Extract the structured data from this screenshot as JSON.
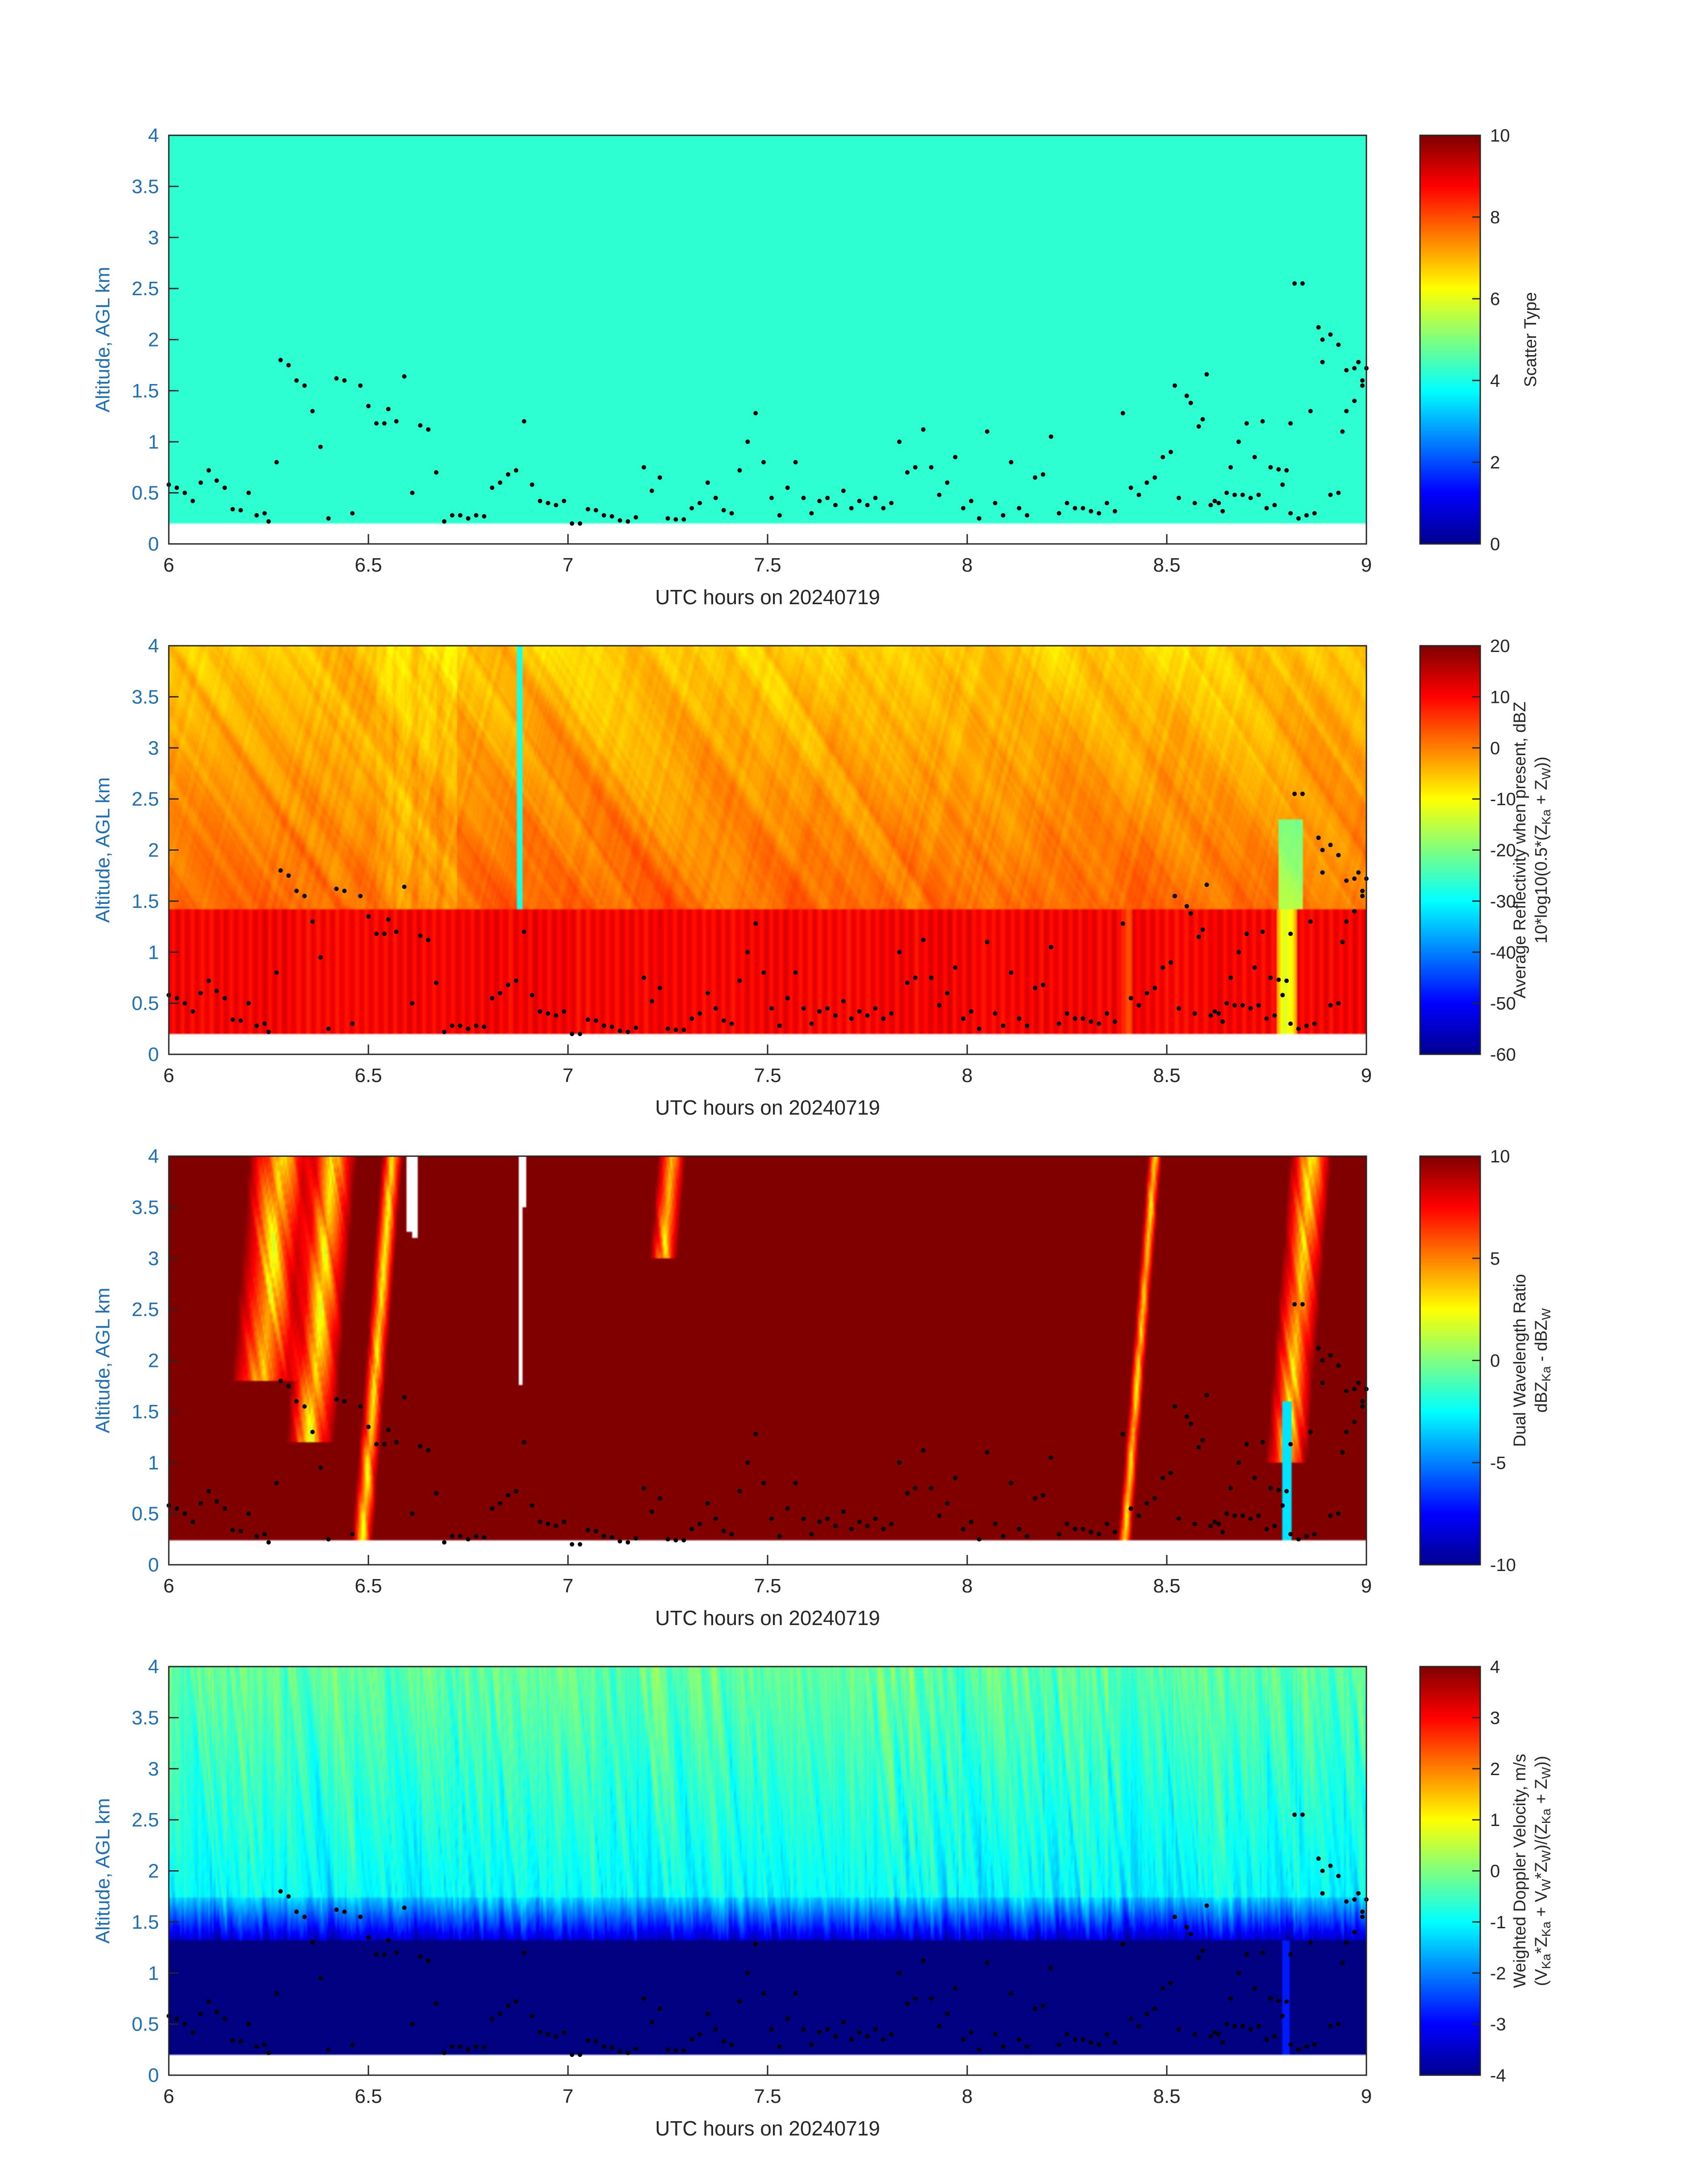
{
  "chart_data": [
    {
      "type": "heatmap",
      "panel": "scatter-type",
      "xlabel": "UTC hours on 20240719",
      "ylabel": "Altitude, AGL km",
      "xlim": [
        6,
        9
      ],
      "ylim": [
        0,
        4
      ],
      "xticks": [
        "6",
        "6.5",
        "7",
        "7.5",
        "8",
        "8.5",
        "9"
      ],
      "yticks": [
        "0",
        "0.5",
        "1",
        "1.5",
        "2",
        "2.5",
        "3",
        "3.5",
        "4"
      ],
      "colorbar": {
        "ticks": [
          "0",
          "2",
          "4",
          "6",
          "8",
          "10"
        ],
        "range": [
          0,
          10
        ],
        "label_lines": [
          "Scatter Type"
        ]
      },
      "field": "uniform",
      "field_value": 4.2,
      "data_bottom_km": 0.2,
      "overlay": "cloud-base-dots"
    },
    {
      "type": "heatmap",
      "panel": "reflectivity",
      "xlabel": "UTC hours on 20240719",
      "ylabel": "Altitude, AGL km",
      "xlim": [
        6,
        9
      ],
      "ylim": [
        0,
        4
      ],
      "xticks": [
        "6",
        "6.5",
        "7",
        "7.5",
        "8",
        "8.5",
        "9"
      ],
      "yticks": [
        "0",
        "0.5",
        "1",
        "1.5",
        "2",
        "2.5",
        "3",
        "3.5",
        "4"
      ],
      "colorbar": {
        "ticks": [
          "20",
          "10",
          "0",
          "-10",
          "-20",
          "-30",
          "-40",
          "-50",
          "-60"
        ],
        "range": [
          -60,
          20
        ],
        "label_lines": [
          "Average Reflectivity when present, dBZ",
          "10*log10(0.5*(Z",
          "Ka",
          " + Z",
          "W",
          "))"
        ]
      },
      "field": "reflectivity",
      "data_bottom_km": 0.2,
      "overlay": "cloud-base-dots"
    },
    {
      "type": "heatmap",
      "panel": "dual-wavelength-ratio",
      "xlabel": "UTC hours on 20240719",
      "ylabel": "Altitude, AGL km",
      "xlim": [
        6,
        9
      ],
      "ylim": [
        0,
        4
      ],
      "xticks": [
        "6",
        "6.5",
        "7",
        "7.5",
        "8",
        "8.5",
        "9"
      ],
      "yticks": [
        "0",
        "0.5",
        "1",
        "1.5",
        "2",
        "2.5",
        "3",
        "3.5",
        "4"
      ],
      "colorbar": {
        "ticks": [
          "10",
          "5",
          "0",
          "-5",
          "-10"
        ],
        "range": [
          -10,
          10
        ],
        "label_lines": [
          "Dual Wavelength Ratio",
          "dBZ",
          "Ka",
          " - dBZ",
          "W"
        ]
      },
      "field": "dwr",
      "data_bottom_km": 0.25,
      "overlay": "cloud-base-dots"
    },
    {
      "type": "heatmap",
      "panel": "doppler-velocity",
      "xlabel": "UTC hours on 20240719",
      "ylabel": "Altitude, AGL km",
      "xlim": [
        6,
        9
      ],
      "ylim": [
        0,
        4
      ],
      "xticks": [
        "6",
        "6.5",
        "7",
        "7.5",
        "8",
        "8.5",
        "9"
      ],
      "yticks": [
        "0",
        "0.5",
        "1",
        "1.5",
        "2",
        "2.5",
        "3",
        "3.5",
        "4"
      ],
      "colorbar": {
        "ticks": [
          "4",
          "3",
          "2",
          "1",
          "0",
          "-1",
          "-2",
          "-3",
          "-4"
        ],
        "range": [
          -4,
          4
        ],
        "label_lines": [
          "Weighted Doppler Velocity, m/s",
          "(V",
          "Ka",
          "*Z",
          "Ka",
          " + V",
          "W",
          "*Z",
          "W",
          ")/(Z",
          "Ka",
          " + Z",
          "W",
          "))"
        ]
      },
      "field": "velocity",
      "data_bottom_km": 0.2,
      "overlay": "cloud-base-dots"
    }
  ],
  "cloud_base_km": [
    [
      6.0,
      0.58
    ],
    [
      6.02,
      0.55
    ],
    [
      6.04,
      0.5
    ],
    [
      6.06,
      0.42
    ],
    [
      6.08,
      0.6
    ],
    [
      6.1,
      0.72
    ],
    [
      6.12,
      0.62
    ],
    [
      6.14,
      0.55
    ],
    [
      6.16,
      0.34
    ],
    [
      6.18,
      0.33
    ],
    [
      6.2,
      0.5
    ],
    [
      6.22,
      0.28
    ],
    [
      6.24,
      0.3
    ],
    [
      6.25,
      0.22
    ],
    [
      6.27,
      0.8
    ],
    [
      6.28,
      1.8
    ],
    [
      6.3,
      1.75
    ],
    [
      6.32,
      1.6
    ],
    [
      6.34,
      1.55
    ],
    [
      6.36,
      1.3
    ],
    [
      6.38,
      0.95
    ],
    [
      6.4,
      0.25
    ],
    [
      6.42,
      1.62
    ],
    [
      6.44,
      1.6
    ],
    [
      6.46,
      0.3
    ],
    [
      6.48,
      1.55
    ],
    [
      6.5,
      1.35
    ],
    [
      6.52,
      1.18
    ],
    [
      6.54,
      1.18
    ],
    [
      6.55,
      1.32
    ],
    [
      6.57,
      1.2
    ],
    [
      6.59,
      1.64
    ],
    [
      6.61,
      0.5
    ],
    [
      6.63,
      1.16
    ],
    [
      6.65,
      1.12
    ],
    [
      6.67,
      0.7
    ],
    [
      6.69,
      0.22
    ],
    [
      6.71,
      0.28
    ],
    [
      6.73,
      0.28
    ],
    [
      6.75,
      0.25
    ],
    [
      6.77,
      0.28
    ],
    [
      6.79,
      0.27
    ],
    [
      6.81,
      0.55
    ],
    [
      6.83,
      0.6
    ],
    [
      6.85,
      0.68
    ],
    [
      6.87,
      0.72
    ],
    [
      6.89,
      1.2
    ],
    [
      6.91,
      0.58
    ],
    [
      6.93,
      0.42
    ],
    [
      6.95,
      0.4
    ],
    [
      6.97,
      0.38
    ],
    [
      6.99,
      0.42
    ],
    [
      7.01,
      0.2
    ],
    [
      7.03,
      0.2
    ],
    [
      7.05,
      0.34
    ],
    [
      7.07,
      0.33
    ],
    [
      7.09,
      0.28
    ],
    [
      7.11,
      0.27
    ],
    [
      7.13,
      0.23
    ],
    [
      7.15,
      0.22
    ],
    [
      7.17,
      0.26
    ],
    [
      7.19,
      0.75
    ],
    [
      7.21,
      0.52
    ],
    [
      7.23,
      0.65
    ],
    [
      7.25,
      0.25
    ],
    [
      7.27,
      0.24
    ],
    [
      7.29,
      0.24
    ],
    [
      7.31,
      0.35
    ],
    [
      7.33,
      0.4
    ],
    [
      7.35,
      0.6
    ],
    [
      7.37,
      0.45
    ],
    [
      7.39,
      0.33
    ],
    [
      7.41,
      0.3
    ],
    [
      7.43,
      0.72
    ],
    [
      7.45,
      1.0
    ],
    [
      7.47,
      1.28
    ],
    [
      7.49,
      0.8
    ],
    [
      7.51,
      0.45
    ],
    [
      7.53,
      0.28
    ],
    [
      7.55,
      0.55
    ],
    [
      7.57,
      0.8
    ],
    [
      7.59,
      0.45
    ],
    [
      7.61,
      0.3
    ],
    [
      7.63,
      0.42
    ],
    [
      7.65,
      0.45
    ],
    [
      7.67,
      0.38
    ],
    [
      7.69,
      0.52
    ],
    [
      7.71,
      0.35
    ],
    [
      7.73,
      0.42
    ],
    [
      7.75,
      0.38
    ],
    [
      7.77,
      0.45
    ],
    [
      7.79,
      0.35
    ],
    [
      7.81,
      0.4
    ],
    [
      7.83,
      1.0
    ],
    [
      7.85,
      0.7
    ],
    [
      7.87,
      0.75
    ],
    [
      7.89,
      1.12
    ],
    [
      7.91,
      0.75
    ],
    [
      7.93,
      0.48
    ],
    [
      7.95,
      0.6
    ],
    [
      7.97,
      0.85
    ],
    [
      7.99,
      0.35
    ],
    [
      8.01,
      0.42
    ],
    [
      8.03,
      0.25
    ],
    [
      8.05,
      1.1
    ],
    [
      8.07,
      0.4
    ],
    [
      8.09,
      0.28
    ],
    [
      8.11,
      0.8
    ],
    [
      8.13,
      0.35
    ],
    [
      8.15,
      0.28
    ],
    [
      8.17,
      0.65
    ],
    [
      8.19,
      0.68
    ],
    [
      8.21,
      1.05
    ],
    [
      8.23,
      0.3
    ],
    [
      8.25,
      0.4
    ],
    [
      8.27,
      0.35
    ],
    [
      8.29,
      0.35
    ],
    [
      8.31,
      0.32
    ],
    [
      8.33,
      0.3
    ],
    [
      8.35,
      0.4
    ],
    [
      8.37,
      0.32
    ],
    [
      8.39,
      1.28
    ],
    [
      8.41,
      0.55
    ],
    [
      8.43,
      0.48
    ],
    [
      8.45,
      0.6
    ],
    [
      8.47,
      0.65
    ],
    [
      8.49,
      0.85
    ],
    [
      8.51,
      0.9
    ],
    [
      8.53,
      0.45
    ],
    [
      8.55,
      1.45
    ],
    [
      8.57,
      0.4
    ],
    [
      8.59,
      1.22
    ],
    [
      8.61,
      0.38
    ],
    [
      8.63,
      0.4
    ],
    [
      8.65,
      0.5
    ],
    [
      8.67,
      0.48
    ],
    [
      8.69,
      0.48
    ],
    [
      8.71,
      0.45
    ],
    [
      8.73,
      0.48
    ],
    [
      8.75,
      0.35
    ],
    [
      8.77,
      0.38
    ],
    [
      8.79,
      0.58
    ],
    [
      8.81,
      0.3
    ],
    [
      8.83,
      0.25
    ],
    [
      8.85,
      0.28
    ],
    [
      8.87,
      0.3
    ],
    [
      8.89,
      1.78
    ],
    [
      8.91,
      0.48
    ],
    [
      8.93,
      0.5
    ],
    [
      8.95,
      1.3
    ],
    [
      8.97,
      1.4
    ],
    [
      8.99,
      1.55
    ],
    [
      8.52,
      1.55
    ],
    [
      8.56,
      1.38
    ],
    [
      8.58,
      1.15
    ],
    [
      8.6,
      1.66
    ],
    [
      8.62,
      0.42
    ],
    [
      8.64,
      0.32
    ],
    [
      8.66,
      0.75
    ],
    [
      8.68,
      1.0
    ],
    [
      8.7,
      1.18
    ],
    [
      8.72,
      0.85
    ],
    [
      8.74,
      1.2
    ],
    [
      8.76,
      0.75
    ],
    [
      8.78,
      0.73
    ],
    [
      8.8,
      0.72
    ],
    [
      8.81,
      1.18
    ],
    [
      8.82,
      2.55
    ],
    [
      8.84,
      2.55
    ],
    [
      8.86,
      1.3
    ],
    [
      8.88,
      2.12
    ],
    [
      8.89,
      2.0
    ],
    [
      8.91,
      2.05
    ],
    [
      8.93,
      1.95
    ],
    [
      8.94,
      1.1
    ],
    [
      8.95,
      1.7
    ],
    [
      8.97,
      1.72
    ],
    [
      8.98,
      1.78
    ],
    [
      8.99,
      1.6
    ],
    [
      9.0,
      1.72
    ]
  ]
}
